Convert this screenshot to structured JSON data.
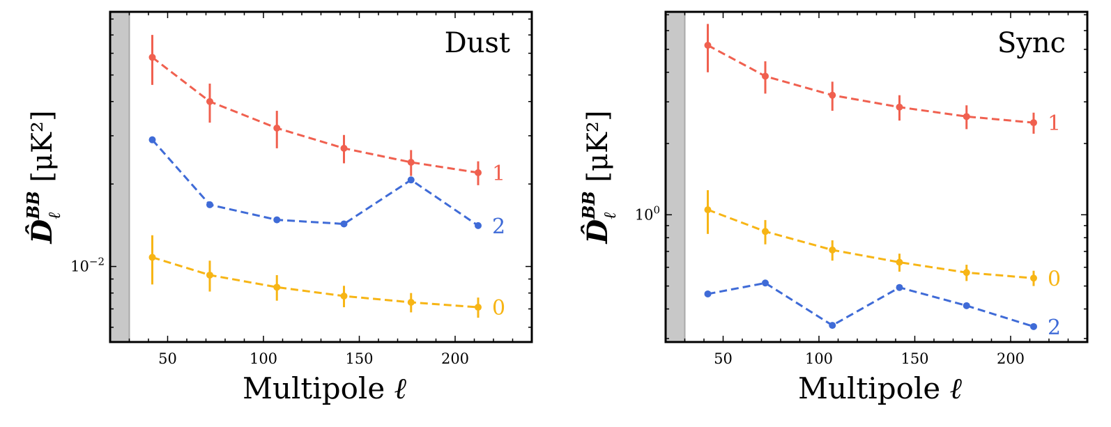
{
  "chart_data": [
    {
      "type": "line",
      "title": "Dust",
      "xlabel": "Multipole ℓ",
      "ylabel": "D̂ℓBB [μK²]",
      "yscale": "log",
      "xlim": [
        20,
        240
      ],
      "ylim": [
        0.0053,
        0.085
      ],
      "excluded_region": [
        20,
        30
      ],
      "x_ticks": [
        50,
        100,
        150,
        200
      ],
      "y_tick_labels": [
        {
          "value": 0.01,
          "label": "10−2"
        }
      ],
      "series": [
        {
          "name": "1",
          "color": "#f0604f",
          "dashed": true,
          "x": [
            42,
            72,
            107,
            142,
            177,
            212
          ],
          "values": [
            0.058,
            0.04,
            0.032,
            0.027,
            0.024,
            0.022
          ],
          "err": [
            0.012,
            0.0065,
            0.005,
            0.0032,
            0.0026,
            0.0022
          ]
        },
        {
          "name": "2",
          "color": "#3f6bd7",
          "dashed": true,
          "x": [
            42,
            72,
            107,
            142,
            177,
            212
          ],
          "values": [
            0.029,
            0.0168,
            0.0148,
            0.0143,
            0.0207,
            0.0141
          ],
          "err": [
            0,
            0,
            0,
            0,
            0,
            0
          ]
        },
        {
          "name": "0",
          "color": "#f7b515",
          "dashed": true,
          "x": [
            42,
            72,
            107,
            142,
            177,
            212
          ],
          "values": [
            0.0108,
            0.0093,
            0.0084,
            0.0078,
            0.0074,
            0.0071
          ],
          "err": [
            0.0022,
            0.0012,
            0.0009,
            0.0007,
            0.0006,
            0.0006
          ]
        }
      ]
    },
    {
      "type": "line",
      "title": "Sync",
      "xlabel": "Multipole ℓ",
      "ylabel": "D̂ℓBB [μK²]",
      "yscale": "log",
      "xlim": [
        20,
        240
      ],
      "ylim": [
        0.29,
        7.2
      ],
      "excluded_region": [
        20,
        30
      ],
      "x_ticks": [
        50,
        100,
        150,
        200
      ],
      "y_tick_labels": [
        {
          "value": 1.0,
          "label": "100"
        }
      ],
      "series": [
        {
          "name": "1",
          "color": "#f0604f",
          "dashed": true,
          "x": [
            42,
            72,
            107,
            142,
            177,
            212
          ],
          "values": [
            5.2,
            3.85,
            3.2,
            2.85,
            2.6,
            2.45
          ],
          "err": [
            1.2,
            0.6,
            0.45,
            0.35,
            0.3,
            0.25
          ]
        },
        {
          "name": "0",
          "color": "#f7b515",
          "dashed": true,
          "x": [
            42,
            72,
            107,
            142,
            177,
            212
          ],
          "values": [
            1.05,
            0.85,
            0.71,
            0.63,
            0.57,
            0.54
          ],
          "err": [
            0.22,
            0.1,
            0.07,
            0.055,
            0.045,
            0.04
          ]
        },
        {
          "name": "2",
          "color": "#3f6bd7",
          "dashed": true,
          "x": [
            42,
            72,
            107,
            142,
            177,
            212
          ],
          "values": [
            0.463,
            0.515,
            0.341,
            0.493,
            0.413,
            0.337
          ],
          "err": [
            0,
            0,
            0,
            0,
            0,
            0
          ]
        }
      ]
    }
  ]
}
